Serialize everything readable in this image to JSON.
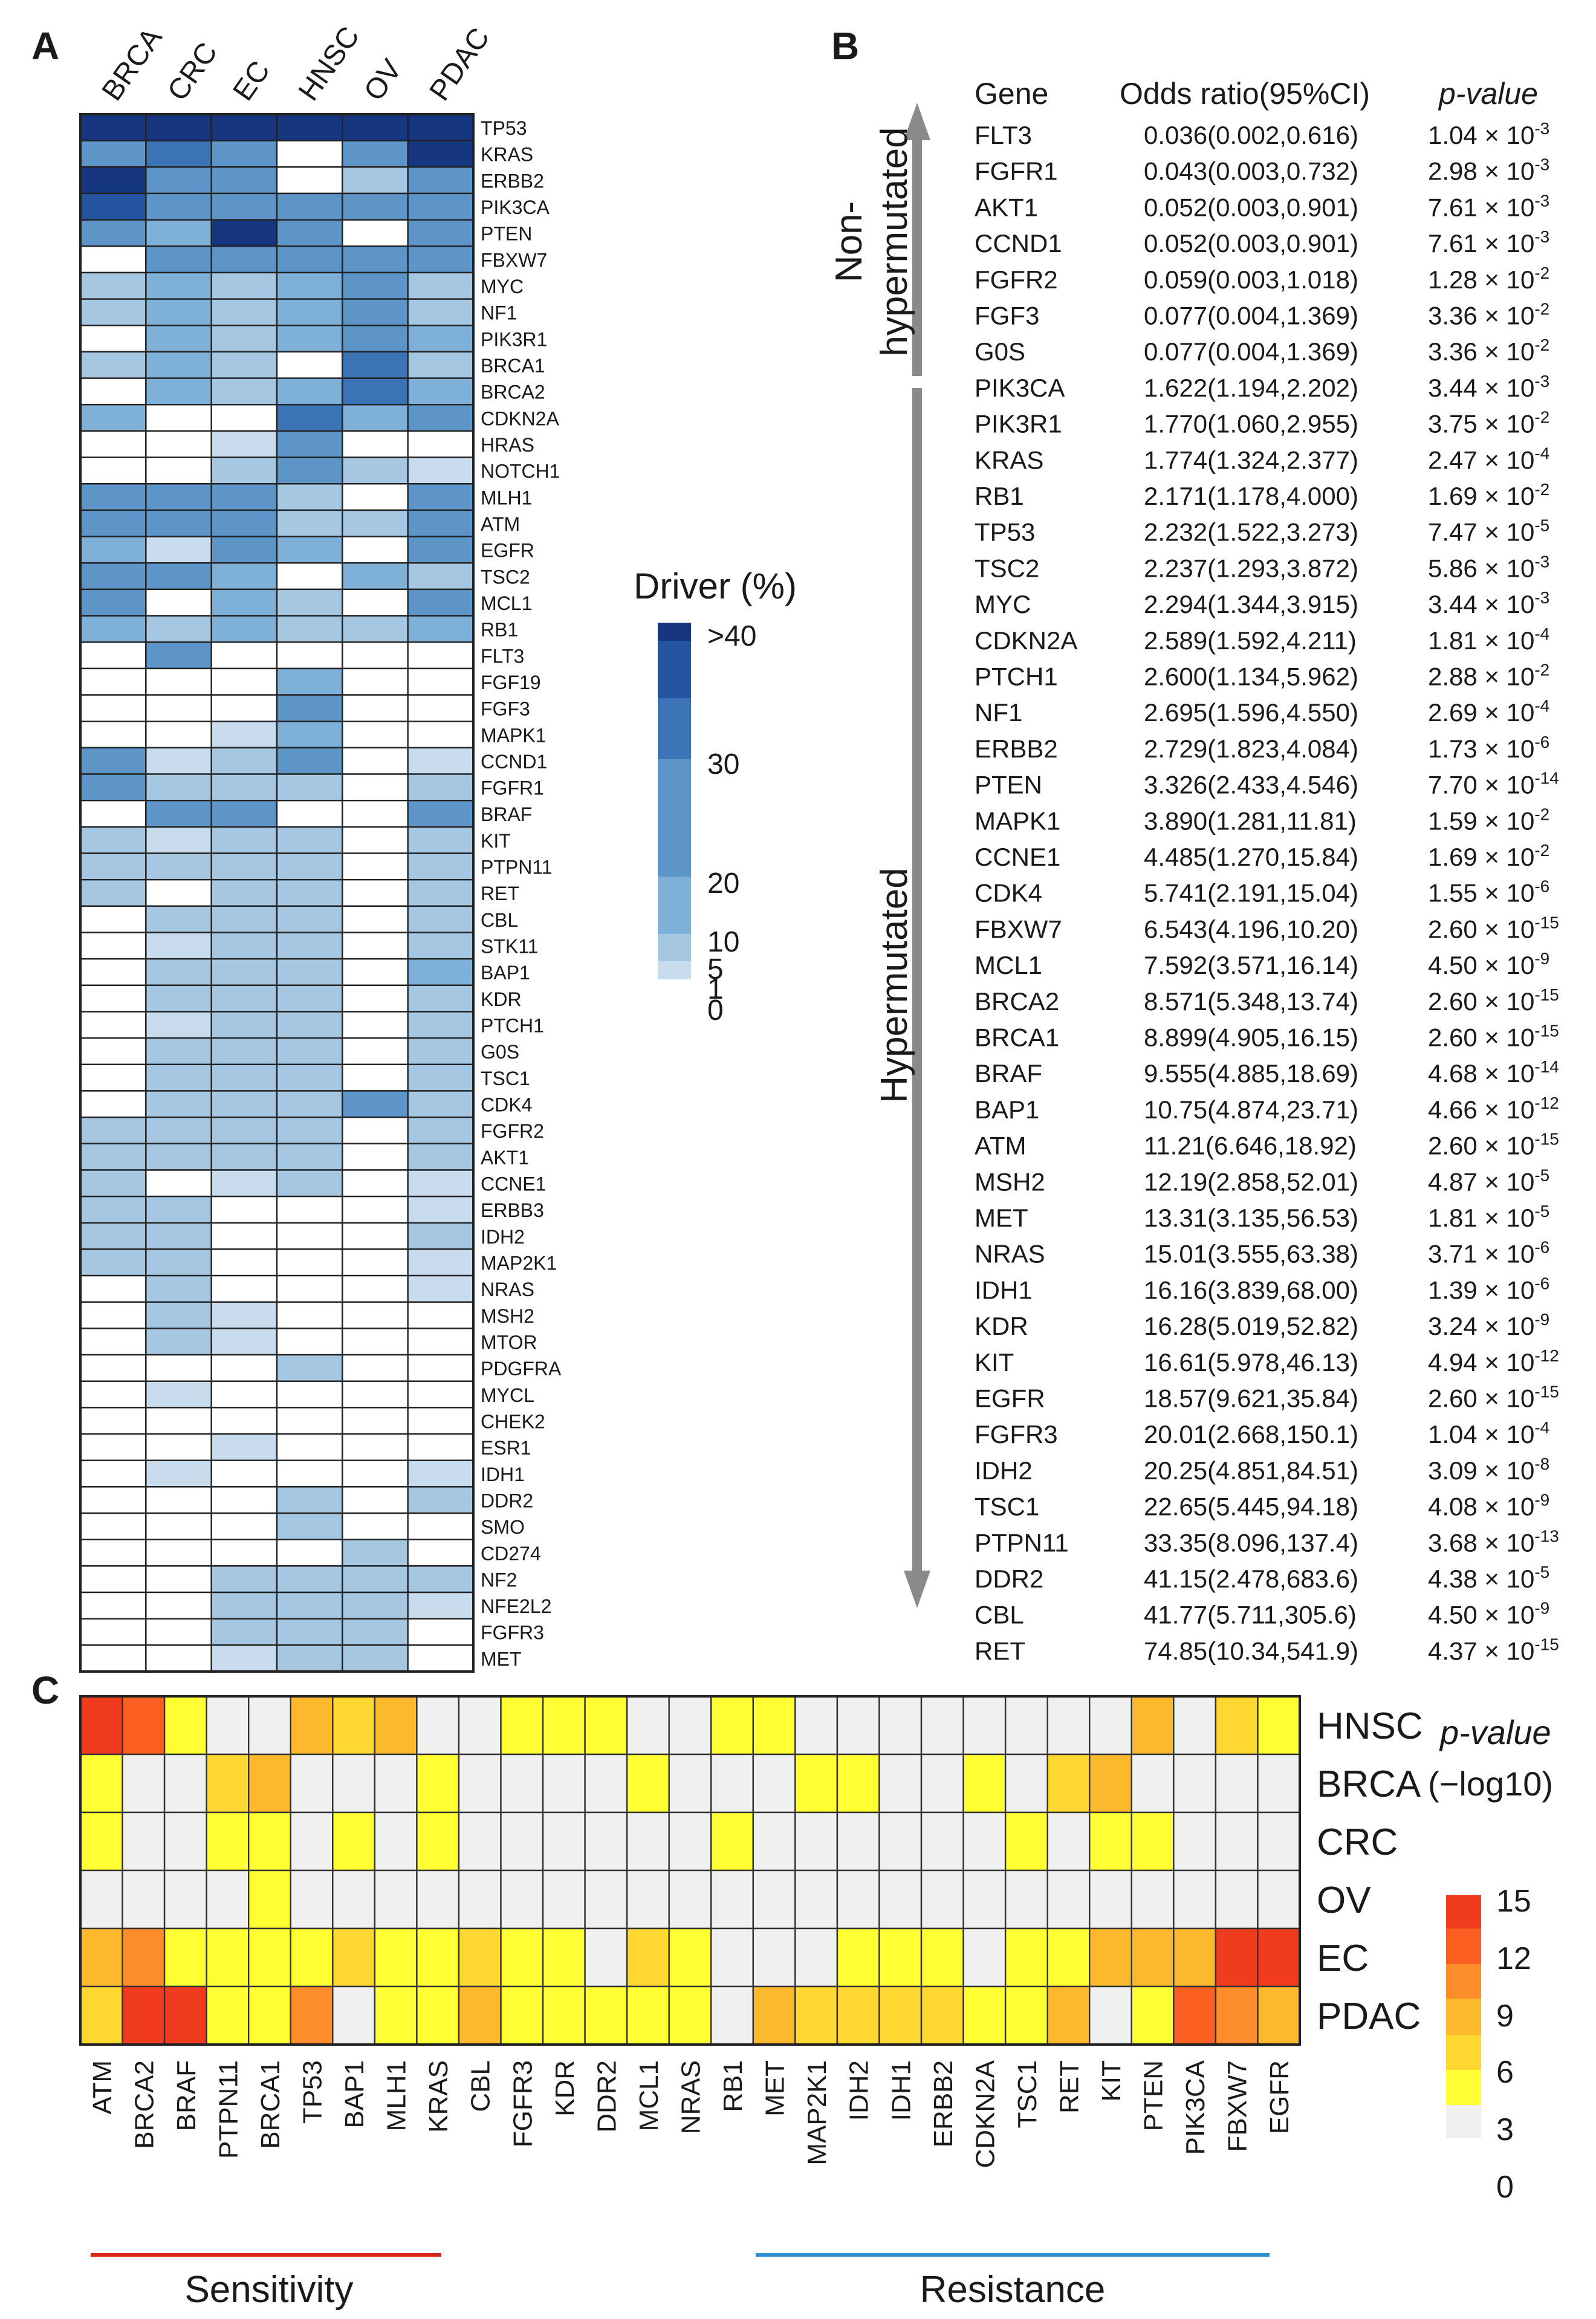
{
  "panel_labels": {
    "a": "A",
    "b": "B",
    "c": "C"
  },
  "chart_data": [
    {
      "type": "heatmap",
      "panel": "A",
      "columns": [
        "BRCA",
        "CRC",
        "EC",
        "HNSC",
        "OV",
        "PDAC"
      ],
      "rows": [
        "TP53",
        "KRAS",
        "ERBB2",
        "PIK3CA",
        "PTEN",
        "FBXW7",
        "MYC",
        "NF1",
        "PIK3R1",
        "BRCA1",
        "BRCA2",
        "CDKN2A",
        "HRAS",
        "NOTCH1",
        "MLH1",
        "ATM",
        "EGFR",
        "TSC2",
        "MCL1",
        "RB1",
        "FLT3",
        "FGF19",
        "FGF3",
        "MAPK1",
        "CCND1",
        "FGFR1",
        "BRAF",
        "KIT",
        "PTPN11",
        "RET",
        "CBL",
        "STK11",
        "BAP1",
        "KDR",
        "PTCH1",
        "G0S",
        "TSC1",
        "CDK4",
        "FGFR2",
        "AKT1",
        "CCNE1",
        "ERBB3",
        "IDH2",
        "MAP2K1",
        "NRAS",
        "MSH2",
        "MTOR",
        "PDGFRA",
        "MYCL",
        "CHEK2",
        "ESR1",
        "IDH1",
        "DDR2",
        "SMO",
        "CD274",
        "NF2",
        "NFE2L2",
        "FGFR3",
        "MET"
      ],
      "values": [
        [
          45,
          45,
          45,
          45,
          45,
          45
        ],
        [
          15,
          25,
          15,
          0,
          15,
          45
        ],
        [
          45,
          15,
          15,
          0,
          5,
          15
        ],
        [
          35,
          15,
          20,
          15,
          15,
          15
        ],
        [
          15,
          10,
          45,
          15,
          0,
          20
        ],
        [
          0,
          15,
          15,
          15,
          15,
          15
        ],
        [
          5,
          10,
          5,
          10,
          20,
          5
        ],
        [
          5,
          10,
          5,
          10,
          15,
          5
        ],
        [
          0,
          10,
          5,
          10,
          20,
          10
        ],
        [
          5,
          10,
          5,
          0,
          25,
          5
        ],
        [
          0,
          10,
          5,
          10,
          25,
          10
        ],
        [
          10,
          0,
          0,
          25,
          10,
          15
        ],
        [
          0,
          0,
          1,
          20,
          0,
          0
        ],
        [
          0,
          0,
          5,
          20,
          5,
          1
        ],
        [
          15,
          15,
          15,
          5,
          0,
          15
        ],
        [
          15,
          15,
          20,
          5,
          5,
          15
        ],
        [
          10,
          1,
          20,
          10,
          0,
          20
        ],
        [
          15,
          15,
          10,
          0,
          10,
          5
        ],
        [
          15,
          0,
          10,
          5,
          0,
          15
        ],
        [
          10,
          5,
          10,
          5,
          5,
          10
        ],
        [
          0,
          20,
          0,
          0,
          0,
          0
        ],
        [
          0,
          0,
          0,
          10,
          0,
          0
        ],
        [
          0,
          0,
          0,
          15,
          0,
          0
        ],
        [
          0,
          0,
          1,
          10,
          0,
          0
        ],
        [
          15,
          1,
          5,
          15,
          0,
          1
        ],
        [
          15,
          5,
          5,
          5,
          0,
          5
        ],
        [
          0,
          15,
          15,
          0,
          0,
          15
        ],
        [
          5,
          1,
          5,
          5,
          0,
          5
        ],
        [
          5,
          5,
          5,
          5,
          0,
          5
        ],
        [
          5,
          0,
          5,
          5,
          0,
          5
        ],
        [
          0,
          5,
          5,
          5,
          0,
          5
        ],
        [
          0,
          1,
          5,
          5,
          0,
          5
        ],
        [
          0,
          5,
          5,
          5,
          0,
          10
        ],
        [
          0,
          5,
          5,
          5,
          0,
          5
        ],
        [
          0,
          1,
          5,
          5,
          0,
          5
        ],
        [
          0,
          5,
          5,
          5,
          0,
          5
        ],
        [
          0,
          5,
          5,
          5,
          0,
          5
        ],
        [
          0,
          5,
          5,
          5,
          15,
          5
        ],
        [
          5,
          5,
          5,
          5,
          0,
          5
        ],
        [
          5,
          5,
          5,
          5,
          0,
          5
        ],
        [
          5,
          0,
          1,
          5,
          0,
          1
        ],
        [
          5,
          5,
          0,
          0,
          0,
          1
        ],
        [
          5,
          5,
          0,
          0,
          0,
          5
        ],
        [
          5,
          5,
          0,
          0,
          0,
          1
        ],
        [
          0,
          5,
          0,
          0,
          0,
          1
        ],
        [
          0,
          5,
          1,
          0,
          0,
          0
        ],
        [
          0,
          5,
          1,
          0,
          0,
          0
        ],
        [
          0,
          0,
          0,
          5,
          0,
          0
        ],
        [
          0,
          1,
          0,
          0,
          0,
          0
        ],
        [
          0,
          0,
          0,
          0,
          0,
          0
        ],
        [
          0,
          0,
          1,
          0,
          0,
          0
        ],
        [
          0,
          1,
          0,
          0,
          0,
          1
        ],
        [
          0,
          0,
          0,
          5,
          0,
          5
        ],
        [
          0,
          0,
          0,
          5,
          0,
          0
        ],
        [
          0,
          0,
          0,
          0,
          5,
          0
        ],
        [
          0,
          0,
          5,
          5,
          5,
          5
        ],
        [
          0,
          0,
          5,
          5,
          5,
          1
        ],
        [
          0,
          0,
          5,
          5,
          5,
          0
        ],
        [
          0,
          0,
          1,
          5,
          5,
          0
        ]
      ],
      "legend": {
        "title": "Driver (%)",
        "levels": [
          0,
          1,
          5,
          10,
          20,
          30,
          40
        ],
        "tick_labels": [
          ">40",
          "30",
          "20",
          "10",
          "5",
          "1",
          "0"
        ],
        "colors": [
          "#ffffff",
          "#c9dcee",
          "#a5c7e2",
          "#7fb0d8",
          "#5e95c8",
          "#3c72b6",
          "#2453a0",
          "#173680"
        ]
      }
    },
    {
      "type": "table",
      "panel": "B",
      "columns": [
        "Gene",
        "Odds ratio(95%CI)",
        "p-value"
      ],
      "group_labels": {
        "top_1": "Non-",
        "top_2": "hypermutated",
        "bottom": "Hypermutated"
      },
      "rows": [
        {
          "gene": "FLT3",
          "or": "0.036(0.002,0.616)",
          "pm": "1.04",
          "pe": "-3"
        },
        {
          "gene": "FGFR1",
          "or": "0.043(0.003,0.732)",
          "pm": "2.98",
          "pe": "-3"
        },
        {
          "gene": "AKT1",
          "or": "0.052(0.003,0.901)",
          "pm": "7.61",
          "pe": "-3"
        },
        {
          "gene": "CCND1",
          "or": "0.052(0.003,0.901)",
          "pm": "7.61",
          "pe": "-3"
        },
        {
          "gene": "FGFR2",
          "or": "0.059(0.003,1.018)",
          "pm": "1.28",
          "pe": "-2"
        },
        {
          "gene": "FGF3",
          "or": "0.077(0.004,1.369)",
          "pm": "3.36",
          "pe": "-2"
        },
        {
          "gene": "G0S",
          "or": "0.077(0.004,1.369)",
          "pm": "3.36",
          "pe": "-2"
        },
        {
          "gene": "PIK3CA",
          "or": "1.622(1.194,2.202)",
          "pm": "3.44",
          "pe": "-3"
        },
        {
          "gene": "PIK3R1",
          "or": "1.770(1.060,2.955)",
          "pm": "3.75",
          "pe": "-2"
        },
        {
          "gene": "KRAS",
          "or": "1.774(1.324,2.377)",
          "pm": "2.47",
          "pe": "-4"
        },
        {
          "gene": "RB1",
          "or": "2.171(1.178,4.000)",
          "pm": "1.69",
          "pe": "-2"
        },
        {
          "gene": "TP53",
          "or": "2.232(1.522,3.273)",
          "pm": "7.47",
          "pe": "-5"
        },
        {
          "gene": "TSC2",
          "or": "2.237(1.293,3.872)",
          "pm": "5.86",
          "pe": "-3"
        },
        {
          "gene": "MYC",
          "or": "2.294(1.344,3.915)",
          "pm": "3.44",
          "pe": "-3"
        },
        {
          "gene": "CDKN2A",
          "or": "2.589(1.592,4.211)",
          "pm": "1.81",
          "pe": "-4"
        },
        {
          "gene": "PTCH1",
          "or": "2.600(1.134,5.962)",
          "pm": "2.88",
          "pe": "-2"
        },
        {
          "gene": "NF1",
          "or": "2.695(1.596,4.550)",
          "pm": "2.69",
          "pe": "-4"
        },
        {
          "gene": "ERBB2",
          "or": "2.729(1.823,4.084)",
          "pm": "1.73",
          "pe": "-6"
        },
        {
          "gene": "PTEN",
          "or": "3.326(2.433,4.546)",
          "pm": "7.70",
          "pe": "-14"
        },
        {
          "gene": "MAPK1",
          "or": "3.890(1.281,11.81)",
          "pm": "1.59",
          "pe": "-2"
        },
        {
          "gene": "CCNE1",
          "or": "4.485(1.270,15.84)",
          "pm": "1.69",
          "pe": "-2"
        },
        {
          "gene": "CDK4",
          "or": "5.741(2.191,15.04)",
          "pm": "1.55",
          "pe": "-6"
        },
        {
          "gene": "FBXW7",
          "or": "6.543(4.196,10.20)",
          "pm": "2.60",
          "pe": "-15"
        },
        {
          "gene": "MCL1",
          "or": "7.592(3.571,16.14)",
          "pm": "4.50",
          "pe": "-9"
        },
        {
          "gene": "BRCA2",
          "or": "8.571(5.348,13.74)",
          "pm": "2.60",
          "pe": "-15"
        },
        {
          "gene": "BRCA1",
          "or": "8.899(4.905,16.15)",
          "pm": "2.60",
          "pe": "-15"
        },
        {
          "gene": "BRAF",
          "or": "9.555(4.885,18.69)",
          "pm": "4.68",
          "pe": "-14"
        },
        {
          "gene": "BAP1",
          "or": "10.75(4.874,23.71)",
          "pm": "4.66",
          "pe": "-12"
        },
        {
          "gene": "ATM",
          "or": "11.21(6.646,18.92)",
          "pm": "2.60",
          "pe": "-15"
        },
        {
          "gene": "MSH2",
          "or": "12.19(2.858,52.01)",
          "pm": "4.87",
          "pe": "-5"
        },
        {
          "gene": "MET",
          "or": "13.31(3.135,56.53)",
          "pm": "1.81",
          "pe": "-5"
        },
        {
          "gene": "NRAS",
          "or": "15.01(3.555,63.38)",
          "pm": "3.71",
          "pe": "-6"
        },
        {
          "gene": "IDH1",
          "or": "16.16(3.839,68.00)",
          "pm": "1.39",
          "pe": "-6"
        },
        {
          "gene": "KDR",
          "or": "16.28(5.019,52.82)",
          "pm": "3.24",
          "pe": "-9"
        },
        {
          "gene": "KIT",
          "or": "16.61(5.978,46.13)",
          "pm": "4.94",
          "pe": "-12"
        },
        {
          "gene": "EGFR",
          "or": "18.57(9.621,35.84)",
          "pm": "2.60",
          "pe": "-15"
        },
        {
          "gene": "FGFR3",
          "or": "20.01(2.668,150.1)",
          "pm": "1.04",
          "pe": "-4"
        },
        {
          "gene": "IDH2",
          "or": "20.25(4.851,84.51)",
          "pm": "3.09",
          "pe": "-8"
        },
        {
          "gene": "TSC1",
          "or": "22.65(5.445,94.18)",
          "pm": "4.08",
          "pe": "-9"
        },
        {
          "gene": "PTPN11",
          "or": "33.35(8.096,137.4)",
          "pm": "3.68",
          "pe": "-13"
        },
        {
          "gene": "DDR2",
          "or": "41.15(2.478,683.6)",
          "pm": "4.38",
          "pe": "-5"
        },
        {
          "gene": "CBL",
          "or": "41.77(5.711,305.6)",
          "pm": "4.50",
          "pe": "-9"
        },
        {
          "gene": "RET",
          "or": "74.85(10.34,541.9)",
          "pm": "4.37",
          "pe": "-15"
        }
      ]
    },
    {
      "type": "heatmap",
      "panel": "C",
      "columns": [
        "ATM",
        "BRCA2",
        "BRAF",
        "PTPN11",
        "BRCA1",
        "TP53",
        "BAP1",
        "MLH1",
        "KRAS",
        "CBL",
        "FGFR3",
        "KDR",
        "DDR2",
        "MCL1",
        "NRAS",
        "RB1",
        "MET",
        "MAP2K1",
        "IDH2",
        "IDH1",
        "ERBB2",
        "CDKN2A",
        "TSC1",
        "RET",
        "KIT",
        "PTEN",
        "PIK3CA",
        "FBXW7",
        "EGFR"
      ],
      "rows": [
        "HNSC",
        "BRCA",
        "CRC",
        "OV",
        "EC",
        "PDAC"
      ],
      "values": [
        [
          13,
          11,
          3,
          0,
          0,
          6,
          5,
          6,
          0,
          0,
          3,
          3,
          3,
          0,
          0,
          3,
          3,
          0,
          0,
          0,
          0,
          0,
          0,
          0,
          0,
          6,
          0,
          5,
          3
        ],
        [
          3,
          0,
          0,
          5,
          6,
          0,
          0,
          0,
          3,
          0,
          0,
          0,
          0,
          3,
          0,
          0,
          0,
          3,
          3,
          0,
          0,
          3,
          0,
          5,
          6,
          0,
          0,
          0,
          0
        ],
        [
          3,
          0,
          0,
          3,
          3,
          0,
          3,
          0,
          3,
          0,
          0,
          0,
          0,
          0,
          0,
          3,
          0,
          0,
          0,
          0,
          0,
          0,
          3,
          0,
          3,
          3,
          0,
          0,
          0
        ],
        [
          0,
          0,
          0,
          0,
          3,
          0,
          0,
          0,
          0,
          0,
          0,
          0,
          0,
          0,
          0,
          0,
          0,
          0,
          0,
          0,
          0,
          0,
          0,
          0,
          0,
          0,
          0,
          0,
          0
        ],
        [
          7,
          8,
          3,
          3,
          3,
          3,
          5,
          3,
          3,
          5,
          3,
          3,
          0,
          5,
          3,
          0,
          0,
          0,
          3,
          3,
          3,
          0,
          3,
          3,
          7,
          6,
          6,
          13,
          15
        ],
        [
          5,
          13,
          14,
          3,
          3,
          9,
          0,
          3,
          3,
          7,
          3,
          3,
          3,
          3,
          3,
          0,
          6,
          5,
          5,
          5,
          5,
          3,
          3,
          7,
          0,
          3,
          10,
          8,
          6
        ]
      ],
      "groups": {
        "sensitivity": "Sensitivity",
        "resistance": "Resistance"
      },
      "legend": {
        "title_1": "p-value",
        "title_2": "(−log10)",
        "tick_labels": [
          "15",
          "12",
          "9",
          "6",
          "3",
          "0"
        ],
        "levels": [
          0,
          3,
          6,
          9,
          12,
          15
        ],
        "colors": [
          "#f0f0f0",
          "#ffff33",
          "#fed830",
          "#fdb92d",
          "#fd8d2a",
          "#fb5f22",
          "#f03b1e"
        ]
      }
    }
  ]
}
